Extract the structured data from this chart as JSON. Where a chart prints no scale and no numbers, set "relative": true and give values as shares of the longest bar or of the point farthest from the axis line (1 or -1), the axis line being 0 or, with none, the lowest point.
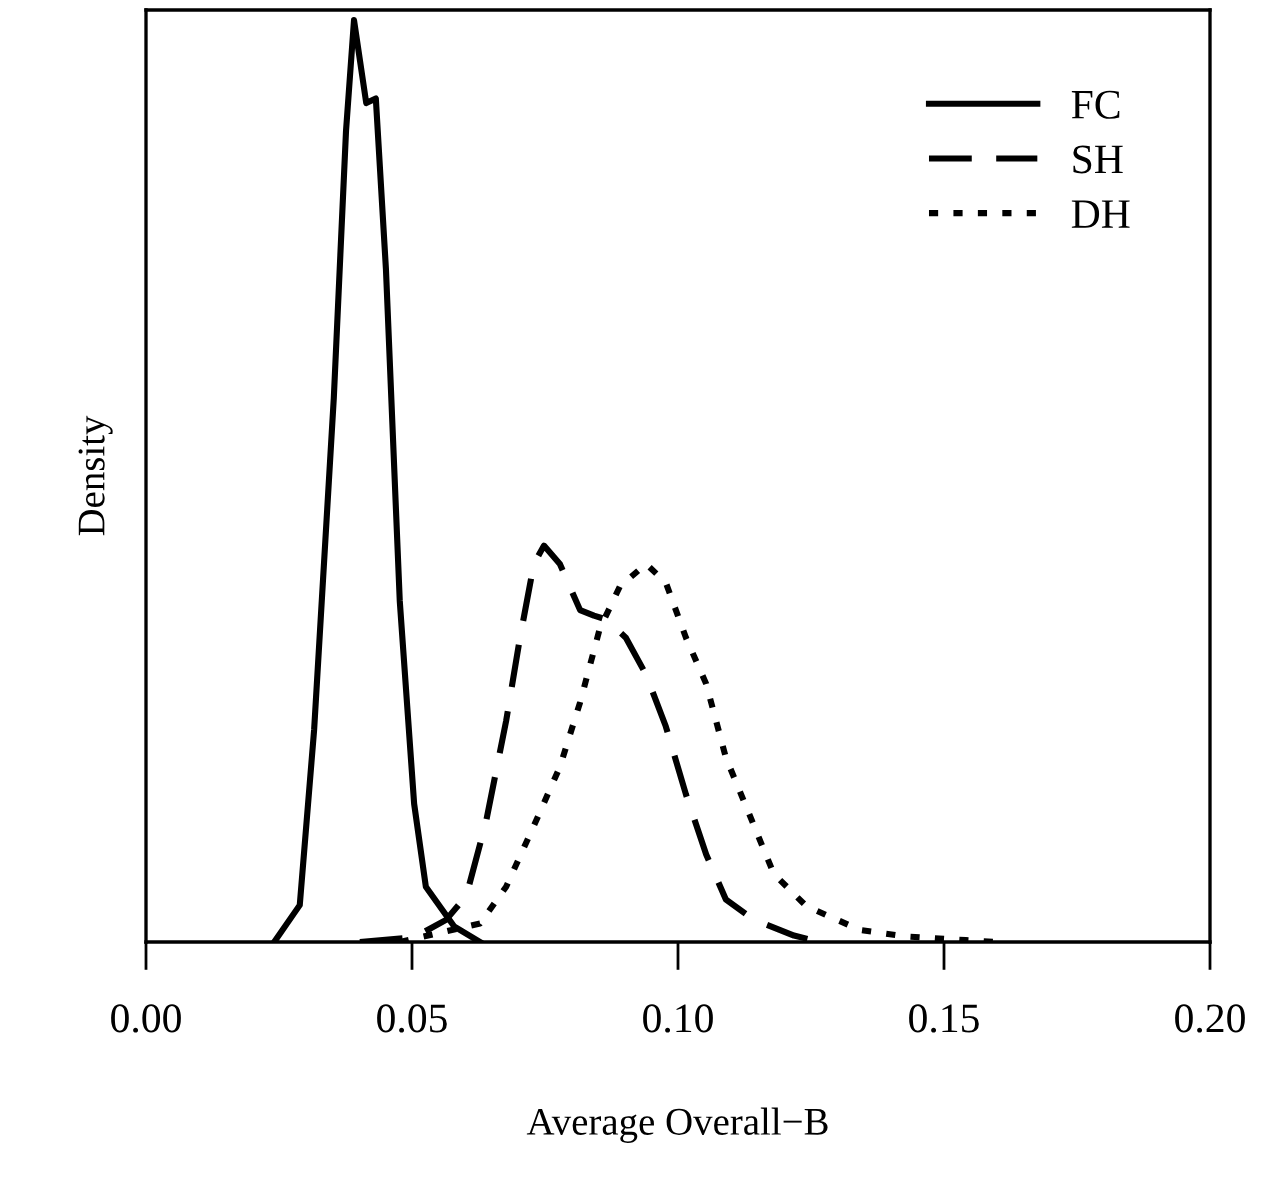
{
  "chart_data": {
    "type": "line",
    "xlabel": "Average Overall−B",
    "ylabel": "Density",
    "relative": true,
    "xlim": [
      0,
      0.2
    ],
    "xticks": [
      {
        "value": 0,
        "label": "0.00"
      },
      {
        "value": 0.05,
        "label": "0.05"
      },
      {
        "value": 0.1,
        "label": "0.10"
      },
      {
        "value": 0.15,
        "label": "0.15"
      },
      {
        "value": 0.2,
        "label": "0.20"
      }
    ],
    "tick_labels": "x",
    "legend": "top right",
    "grid": false,
    "marker": "none",
    "series": [
      {
        "name": "FC",
        "color": "#000000",
        "line_style": "solid",
        "x": [
          0.0241,
          0.0289,
          0.0316,
          0.0353,
          0.0376,
          0.0391,
          0.0414,
          0.0432,
          0.0451,
          0.0477,
          0.0504,
          0.0526,
          0.0579,
          0.0628
        ],
        "values": [
          0,
          0.04,
          0.23,
          0.59,
          0.88,
          1.0,
          0.91,
          0.915,
          0.73,
          0.37,
          0.15,
          0.06,
          0.017,
          0
        ]
      },
      {
        "name": "SH",
        "color": "#000000",
        "line_style": "dashed",
        "x": [
          0.0402,
          0.0504,
          0.0564,
          0.0602,
          0.0639,
          0.0677,
          0.0703,
          0.0729,
          0.0748,
          0.0778,
          0.0816,
          0.0842,
          0.0865,
          0.0902,
          0.094,
          0.0977,
          0.1015,
          0.1053,
          0.109,
          0.1143,
          0.1218,
          0.1267
        ],
        "values": [
          0,
          0.005,
          0.024,
          0.05,
          0.13,
          0.24,
          0.33,
          0.41,
          0.43,
          0.41,
          0.36,
          0.354,
          0.35,
          0.33,
          0.29,
          0.234,
          0.16,
          0.095,
          0.046,
          0.024,
          0.007,
          0
        ]
      },
      {
        "name": "DH",
        "color": "#000000",
        "line_style": "dotted",
        "x": [
          0.0477,
          0.0628,
          0.0677,
          0.0729,
          0.0778,
          0.0816,
          0.0853,
          0.0891,
          0.094,
          0.0977,
          0.1015,
          0.1053,
          0.109,
          0.1128,
          0.118,
          0.1241,
          0.1342,
          0.1429,
          0.1541,
          0.1594
        ],
        "values": [
          0,
          0.02,
          0.06,
          0.126,
          0.19,
          0.26,
          0.34,
          0.386,
          0.41,
          0.39,
          0.33,
          0.28,
          0.2,
          0.147,
          0.074,
          0.039,
          0.013,
          0.006,
          0.002,
          0
        ]
      }
    ]
  }
}
